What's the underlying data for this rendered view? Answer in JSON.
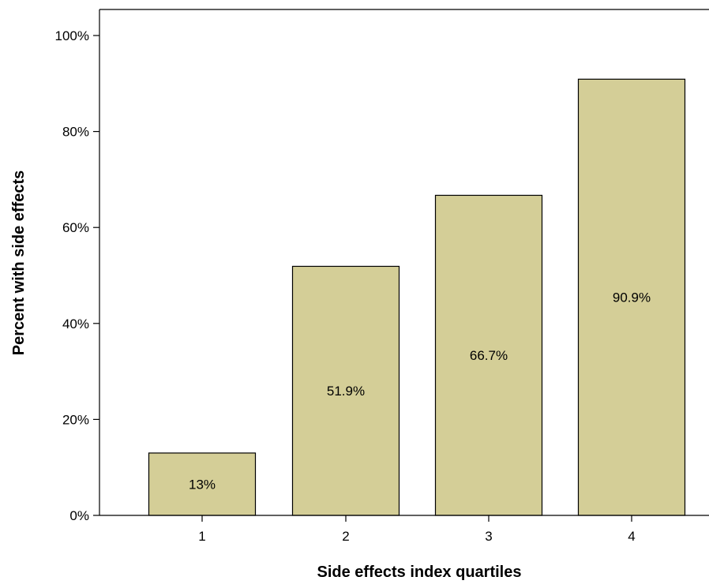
{
  "chart_data": {
    "type": "bar",
    "categories": [
      "1",
      "2",
      "3",
      "4"
    ],
    "values": [
      13,
      51.9,
      66.7,
      90.9
    ],
    "data_labels": [
      "13%",
      "51.9%",
      "66.7%",
      "90.9%"
    ],
    "title": "",
    "xlabel": "Side effects index quartiles",
    "ylabel": "Percent with side effects",
    "ylim": [
      0,
      100
    ],
    "yticks": [
      0,
      20,
      40,
      60,
      80,
      100
    ],
    "ytick_labels": [
      "0%",
      "20%",
      "40%",
      "60%",
      "80%",
      "100%"
    ],
    "grid": false,
    "legend": "none",
    "colors": {
      "bar_fill": "#d4ce97",
      "bar_stroke": "#000000",
      "axis": "#000000"
    }
  }
}
